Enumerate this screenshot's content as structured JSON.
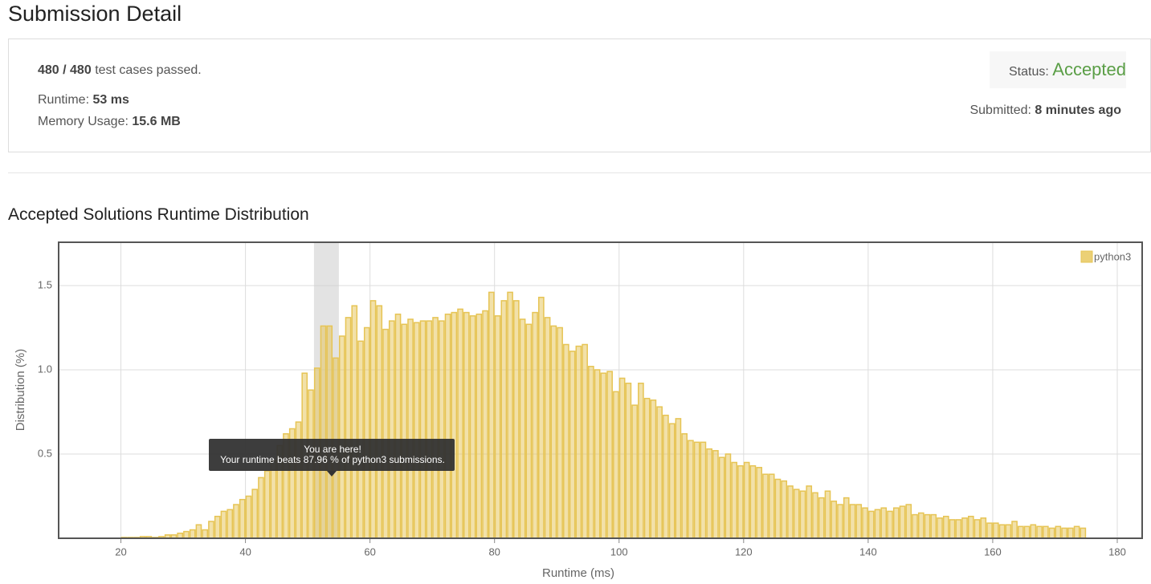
{
  "header": {
    "title": "Submission Detail"
  },
  "summary": {
    "passed": "480 / 480",
    "passed_suffix": "test cases passed.",
    "runtime_label": "Runtime:",
    "runtime": "53 ms",
    "memory_label": "Memory Usage:",
    "memory": "15.6 MB",
    "status_label": "Status:",
    "status": "Accepted",
    "submitted_label": "Submitted:",
    "submitted": "8 minutes ago"
  },
  "chart_data": {
    "type": "histogram",
    "title": "Accepted Solutions Runtime Distribution",
    "x_label": "Runtime (ms)",
    "y_label": "Distribution (%)",
    "bins": [
      20,
      21,
      22,
      23,
      24,
      25,
      26,
      27,
      28,
      29,
      30,
      31,
      32,
      33,
      34,
      35,
      36,
      37,
      38,
      39,
      40,
      41,
      42,
      43,
      44,
      45,
      46,
      47,
      48,
      49,
      50,
      51,
      52,
      53,
      54,
      55,
      56,
      57,
      58,
      59,
      60,
      61,
      62,
      63,
      64,
      65,
      66,
      67,
      68,
      69,
      70,
      71,
      72,
      73,
      74,
      75,
      76,
      77,
      78,
      79,
      80,
      81,
      82,
      83,
      84,
      85,
      86,
      87,
      88,
      89,
      90,
      91,
      92,
      93,
      94,
      95,
      96,
      97,
      98,
      99,
      100,
      101,
      102,
      103,
      104,
      105,
      106,
      107,
      108,
      109,
      110,
      111,
      112,
      113,
      114,
      115,
      116,
      117,
      118,
      119,
      120,
      121,
      122,
      123,
      124,
      125,
      126,
      127,
      128,
      129,
      130,
      131,
      132,
      133,
      134,
      135,
      136,
      137,
      138,
      139,
      140,
      141,
      142,
      143,
      144,
      145,
      146,
      147,
      148,
      149,
      150,
      151,
      152,
      153,
      154,
      155,
      156,
      157,
      158,
      159,
      160,
      161,
      162,
      163,
      164,
      165,
      166,
      167,
      168,
      169,
      170,
      171,
      172,
      173,
      174,
      175
    ],
    "series": [
      {
        "name": "python3",
        "color": "#e6c454",
        "values": [
          0.005,
          0.005,
          0.005,
          0.01,
          0.01,
          0.005,
          0.01,
          0.02,
          0.02,
          0.03,
          0.04,
          0.05,
          0.08,
          0.05,
          0.1,
          0.13,
          0.16,
          0.17,
          0.2,
          0.23,
          0.25,
          0.29,
          0.36,
          0.4,
          0.46,
          0.55,
          0.62,
          0.65,
          0.69,
          0.98,
          0.88,
          1.01,
          1.26,
          1.26,
          1.07,
          1.2,
          1.31,
          1.38,
          1.17,
          1.25,
          1.41,
          1.38,
          1.24,
          1.29,
          1.33,
          1.27,
          1.3,
          1.28,
          1.29,
          1.29,
          1.31,
          1.29,
          1.33,
          1.34,
          1.36,
          1.34,
          1.32,
          1.33,
          1.35,
          1.46,
          1.32,
          1.41,
          1.46,
          1.41,
          1.3,
          1.27,
          1.34,
          1.43,
          1.31,
          1.26,
          1.25,
          1.15,
          1.11,
          1.14,
          1.15,
          1.02,
          1.0,
          0.98,
          0.99,
          0.87,
          0.95,
          0.92,
          0.79,
          0.92,
          0.83,
          0.82,
          0.78,
          0.73,
          0.68,
          0.71,
          0.62,
          0.58,
          0.57,
          0.57,
          0.53,
          0.52,
          0.48,
          0.5,
          0.45,
          0.43,
          0.45,
          0.43,
          0.42,
          0.38,
          0.38,
          0.35,
          0.34,
          0.31,
          0.29,
          0.28,
          0.31,
          0.27,
          0.24,
          0.28,
          0.22,
          0.2,
          0.24,
          0.2,
          0.2,
          0.18,
          0.16,
          0.17,
          0.18,
          0.16,
          0.18,
          0.19,
          0.2,
          0.14,
          0.15,
          0.14,
          0.14,
          0.12,
          0.13,
          0.11,
          0.11,
          0.12,
          0.13,
          0.11,
          0.12,
          0.09,
          0.09,
          0.08,
          0.08,
          0.1,
          0.07,
          0.07,
          0.08,
          0.07,
          0.07,
          0.06,
          0.07,
          0.06,
          0.06,
          0.07,
          0.06
        ]
      }
    ],
    "xlim": [
      10,
      184
    ],
    "xticks": [
      20,
      40,
      60,
      80,
      100,
      120,
      140,
      160,
      180
    ],
    "ylim": [
      0,
      1.757
    ],
    "yticks": [
      0.5,
      {
        "value": 1,
        "label": "1.0"
      },
      {
        "value": 1.5,
        "label": "1.5"
      }
    ],
    "grid": true,
    "legend": "top-right",
    "highlight_range": [
      51,
      55
    ],
    "tooltip": {
      "title": "You are here!",
      "text": "Your runtime beats 87.96 % of python3 submissions."
    }
  }
}
